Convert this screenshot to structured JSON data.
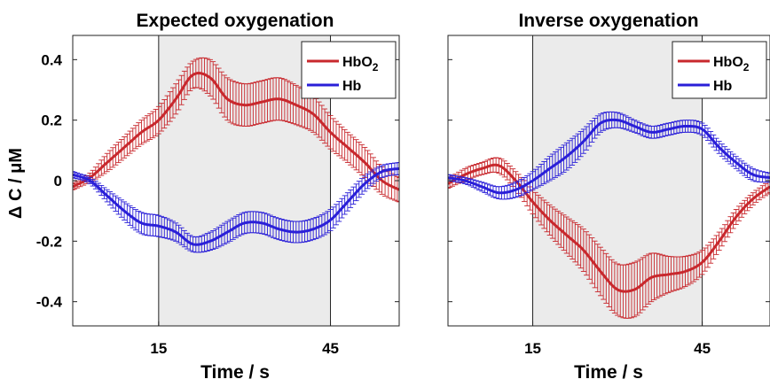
{
  "chart_data": [
    {
      "type": "line",
      "title": "Expected oxygenation",
      "xlabel": "Time  / s",
      "ylabel": "Δ C  / μM",
      "xlim": [
        0,
        57
      ],
      "ylim": [
        -0.48,
        0.48
      ],
      "xticks": [
        15,
        45
      ],
      "yticks": [
        0.4,
        0.2,
        0,
        -0.2,
        -0.4
      ],
      "ytick_labels": [
        "0.4",
        "0.2",
        "0",
        "-0.2",
        "-0.4"
      ],
      "stimulus_window": [
        15,
        45
      ],
      "stimulus_shading": "#ebebeb",
      "legend_position": "top-right",
      "grid": false,
      "series": [
        {
          "name": "HbO2",
          "color": "#c8282d",
          "x": [
            0,
            3,
            6,
            9,
            12,
            15,
            18,
            21,
            24,
            27,
            30,
            33,
            36,
            39,
            42,
            45,
            48,
            51,
            54,
            57
          ],
          "y": [
            -0.02,
            0.01,
            0.06,
            0.11,
            0.16,
            0.2,
            0.27,
            0.35,
            0.34,
            0.27,
            0.25,
            0.26,
            0.27,
            0.25,
            0.22,
            0.16,
            0.11,
            0.06,
            0.0,
            -0.03
          ],
          "err": [
            0.01,
            0.015,
            0.03,
            0.035,
            0.04,
            0.045,
            0.05,
            0.045,
            0.06,
            0.07,
            0.07,
            0.07,
            0.07,
            0.065,
            0.06,
            0.055,
            0.05,
            0.05,
            0.045,
            0.04
          ]
        },
        {
          "name": "Hb",
          "color": "#2a1fd8",
          "x": [
            0,
            3,
            6,
            9,
            12,
            15,
            18,
            21,
            24,
            27,
            30,
            33,
            36,
            39,
            42,
            45,
            48,
            51,
            54,
            57
          ],
          "y": [
            0.02,
            0.0,
            -0.05,
            -0.1,
            -0.14,
            -0.15,
            -0.17,
            -0.21,
            -0.2,
            -0.17,
            -0.14,
            -0.14,
            -0.16,
            -0.17,
            -0.16,
            -0.13,
            -0.07,
            -0.01,
            0.03,
            0.04
          ],
          "err": [
            0.01,
            0.01,
            0.02,
            0.03,
            0.035,
            0.035,
            0.03,
            0.025,
            0.03,
            0.035,
            0.035,
            0.035,
            0.035,
            0.035,
            0.035,
            0.035,
            0.03,
            0.025,
            0.02,
            0.02
          ]
        }
      ]
    },
    {
      "type": "line",
      "title": "Inverse oxygenation",
      "xlabel": "Time  / s",
      "ylabel": "",
      "xlim": [
        0,
        57
      ],
      "ylim": [
        -0.48,
        0.48
      ],
      "xticks": [
        15,
        45
      ],
      "yticks": [
        0.4,
        0.2,
        0,
        -0.2,
        -0.4
      ],
      "ytick_labels": [
        "",
        "",
        "",
        "",
        ""
      ],
      "stimulus_window": [
        15,
        45
      ],
      "stimulus_shading": "#ebebeb",
      "legend_position": "top-right",
      "grid": false,
      "series": [
        {
          "name": "HbO2",
          "color": "#c8282d",
          "x": [
            0,
            3,
            6,
            9,
            12,
            15,
            18,
            21,
            24,
            27,
            30,
            33,
            36,
            39,
            42,
            45,
            48,
            51,
            54,
            57
          ],
          "y": [
            -0.01,
            0.02,
            0.04,
            0.05,
            0.0,
            -0.07,
            -0.13,
            -0.18,
            -0.23,
            -0.3,
            -0.36,
            -0.36,
            -0.32,
            -0.31,
            -0.3,
            -0.27,
            -0.2,
            -0.12,
            -0.06,
            -0.02
          ],
          "err": [
            0.015,
            0.02,
            0.02,
            0.025,
            0.03,
            0.04,
            0.05,
            0.06,
            0.07,
            0.08,
            0.085,
            0.09,
            0.08,
            0.06,
            0.05,
            0.04,
            0.03,
            0.025,
            0.02,
            0.02
          ]
        },
        {
          "name": "Hb",
          "color": "#2a1fd8",
          "x": [
            0,
            3,
            6,
            9,
            12,
            15,
            18,
            21,
            24,
            27,
            30,
            33,
            36,
            39,
            42,
            45,
            48,
            51,
            54,
            57
          ],
          "y": [
            0.01,
            0.0,
            -0.02,
            -0.04,
            -0.03,
            0.0,
            0.04,
            0.08,
            0.13,
            0.19,
            0.2,
            0.18,
            0.16,
            0.17,
            0.18,
            0.17,
            0.11,
            0.06,
            0.02,
            0.01
          ],
          "err": [
            0.01,
            0.01,
            0.015,
            0.02,
            0.025,
            0.03,
            0.04,
            0.045,
            0.04,
            0.03,
            0.025,
            0.02,
            0.02,
            0.02,
            0.02,
            0.02,
            0.02,
            0.02,
            0.02,
            0.015
          ]
        }
      ]
    }
  ]
}
